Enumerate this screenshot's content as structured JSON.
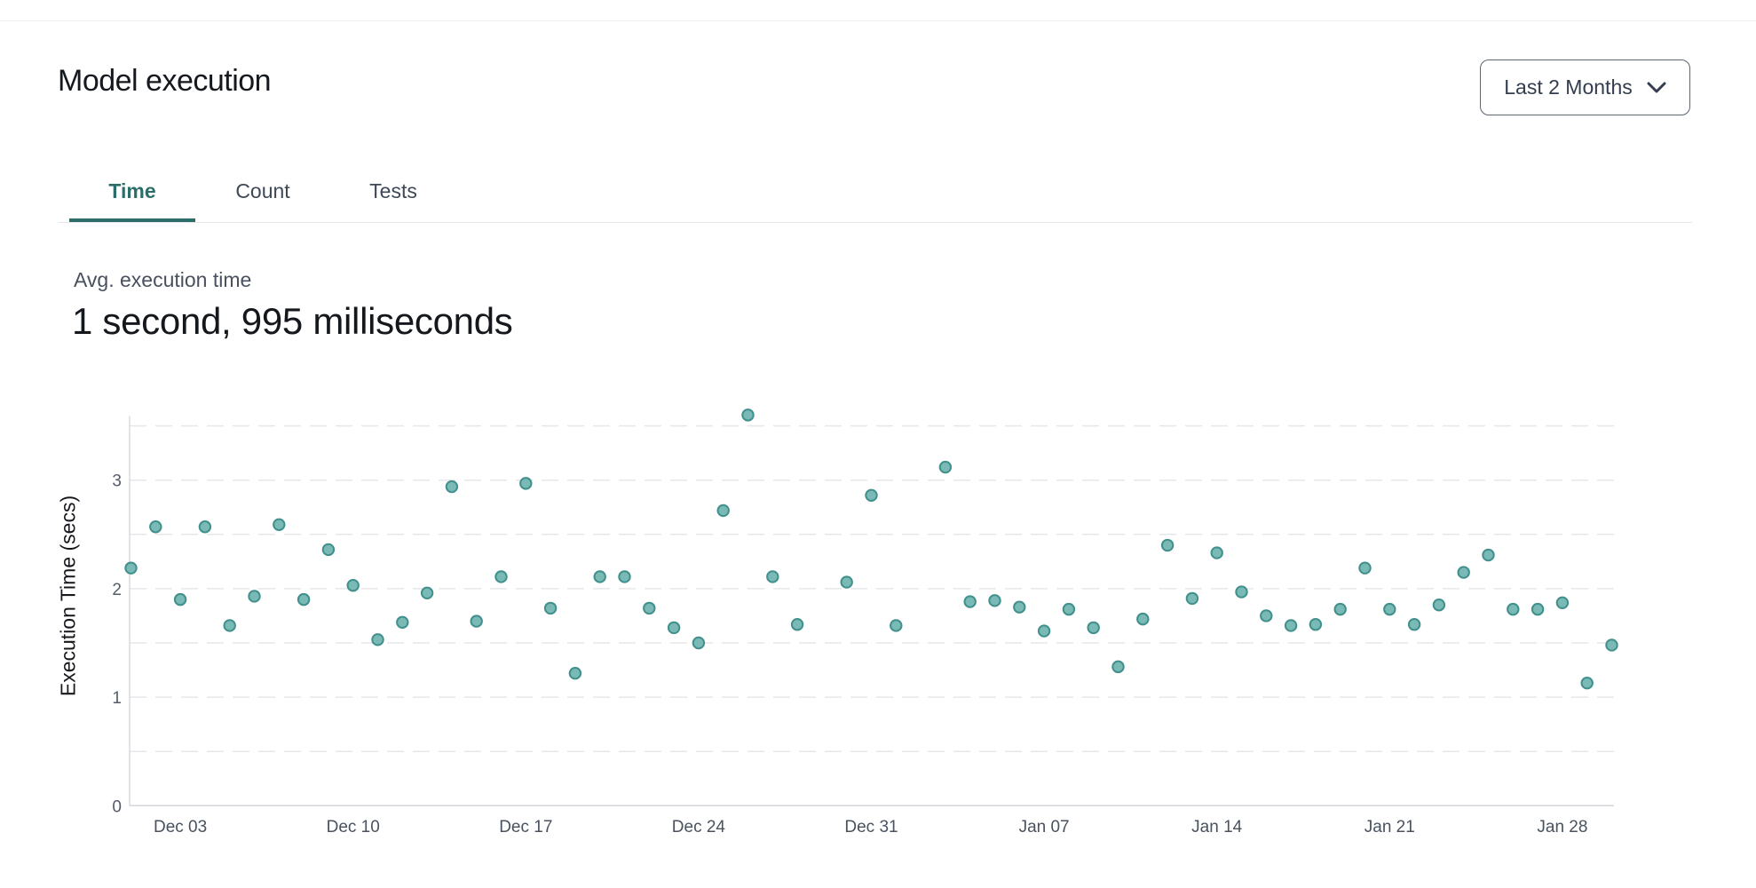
{
  "header": {
    "title": "Model execution",
    "range_selector": {
      "label": "Last 2 Months"
    }
  },
  "tabs": [
    {
      "label": "Time",
      "active": true
    },
    {
      "label": "Count",
      "active": false
    },
    {
      "label": "Tests",
      "active": false
    }
  ],
  "summary": {
    "label": "Avg. execution time",
    "value": "1 second, 995 milliseconds"
  },
  "chart_data": {
    "type": "scatter",
    "title": "",
    "xlabel": "",
    "ylabel": "Execution Time (secs)",
    "ylim": [
      0,
      3.7
    ],
    "yticks": [
      0,
      1,
      2,
      3
    ],
    "grid": "dashed horizontal lines every 0.5 secs",
    "legend": "none",
    "xticks": [
      "Dec 03",
      "Dec 10",
      "Dec 17",
      "Dec 24",
      "Dec 31",
      "Jan 07",
      "Jan 14",
      "Jan 21",
      "Jan 28"
    ],
    "point_color_fill": "#79b9b6",
    "point_color_stroke": "#41908c",
    "points": [
      [
        "Dec 01",
        2.19
      ],
      [
        "Dec 02",
        2.57
      ],
      [
        "Dec 03",
        1.9
      ],
      [
        "Dec 04",
        2.57
      ],
      [
        "Dec 05",
        1.66
      ],
      [
        "Dec 06",
        1.93
      ],
      [
        "Dec 07",
        2.59
      ],
      [
        "Dec 08",
        1.9
      ],
      [
        "Dec 09",
        2.36
      ],
      [
        "Dec 10",
        2.03
      ],
      [
        "Dec 11",
        1.53
      ],
      [
        "Dec 12",
        1.69
      ],
      [
        "Dec 13",
        1.96
      ],
      [
        "Dec 14",
        2.94
      ],
      [
        "Dec 15",
        1.7
      ],
      [
        "Dec 16",
        2.11
      ],
      [
        "Dec 17",
        2.97
      ],
      [
        "Dec 18",
        1.82
      ],
      [
        "Dec 19",
        1.22
      ],
      [
        "Dec 20",
        2.11
      ],
      [
        "Dec 21",
        2.11
      ],
      [
        "Dec 22",
        1.82
      ],
      [
        "Dec 23",
        1.64
      ],
      [
        "Dec 24",
        1.5
      ],
      [
        "Dec 25",
        2.72
      ],
      [
        "Dec 26",
        3.6
      ],
      [
        "Dec 27",
        2.11
      ],
      [
        "Dec 28",
        1.67
      ],
      [
        "Dec 30",
        2.06
      ],
      [
        "Dec 31",
        2.86
      ],
      [
        "Jan 01",
        1.66
      ],
      [
        "Jan 03",
        3.12
      ],
      [
        "Jan 04",
        1.88
      ],
      [
        "Jan 05",
        1.89
      ],
      [
        "Jan 06",
        1.83
      ],
      [
        "Jan 07",
        1.61
      ],
      [
        "Jan 08",
        1.81
      ],
      [
        "Jan 09",
        1.64
      ],
      [
        "Jan 10",
        1.28
      ],
      [
        "Jan 11",
        1.72
      ],
      [
        "Jan 12",
        2.4
      ],
      [
        "Jan 13",
        1.91
      ],
      [
        "Jan 14",
        2.33
      ],
      [
        "Jan 15",
        1.97
      ],
      [
        "Jan 16",
        1.75
      ],
      [
        "Jan 17",
        1.66
      ],
      [
        "Jan 18",
        1.67
      ],
      [
        "Jan 19",
        1.81
      ],
      [
        "Jan 20",
        2.19
      ],
      [
        "Jan 21",
        1.81
      ],
      [
        "Jan 22",
        1.67
      ],
      [
        "Jan 23",
        1.85
      ],
      [
        "Jan 24",
        2.15
      ],
      [
        "Jan 25",
        2.31
      ],
      [
        "Jan 26",
        1.81
      ],
      [
        "Jan 27",
        1.81
      ],
      [
        "Jan 28",
        1.87
      ],
      [
        "Jan 29",
        1.13
      ],
      [
        "Jan 30",
        1.48
      ]
    ]
  }
}
